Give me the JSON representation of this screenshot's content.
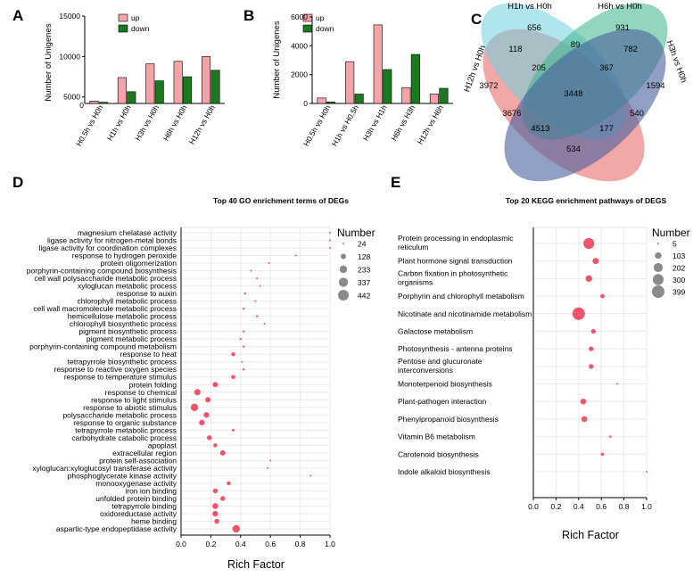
{
  "chart_data": [
    {
      "panel": "A",
      "type": "bar",
      "categories": [
        "H0.5h vs H0h",
        "H1h vs H0h",
        "H3h vs H0h",
        "H6h vs H0h",
        "H12h vs H0h"
      ],
      "series": [
        {
          "name": "up",
          "color": "#f4a3a8",
          "values": [
            4500,
            7400,
            9100,
            9400,
            10000
          ]
        },
        {
          "name": "down",
          "color": "#1a7a1f",
          "values": [
            4350,
            5650,
            7000,
            7500,
            8300
          ]
        }
      ],
      "ylabel": "Number of Unigenes",
      "ylim": [
        4200,
        15000
      ],
      "yticks": [
        5000,
        10000,
        15000
      ],
      "ytick_labels": [
        "5000",
        "10000",
        "15000"
      ],
      "origin_label": "0"
    },
    {
      "panel": "B",
      "type": "bar",
      "categories": [
        "H0.5h vs H0h",
        "H1h vs H0.5h",
        "H3h vs H1h",
        "H6h vs H3h",
        "H12h vs H6h"
      ],
      "series": [
        {
          "name": "up",
          "color": "#f4a3a8",
          "values": [
            380,
            2900,
            5450,
            1100,
            650
          ]
        },
        {
          "name": "down",
          "color": "#1a7a1f",
          "values": [
            100,
            650,
            2350,
            3400,
            1050
          ]
        }
      ],
      "ylabel": "Number of Unigenes",
      "ylim": [
        0,
        6000
      ],
      "yticks": [
        0,
        2000,
        4000,
        6000
      ],
      "ytick_labels": [
        "0",
        "2000",
        "4000",
        "6000"
      ]
    },
    {
      "panel": "C",
      "type": "venn",
      "sets": [
        "H12h vs H0h",
        "H1h vs H0h",
        "H6h vs H0h",
        "H3h vs H0h"
      ],
      "regions": [
        "656",
        "931",
        "89",
        "118",
        "782",
        "205",
        "367",
        "3972",
        "1594",
        "3448",
        "3676",
        "540",
        "4513",
        "177",
        "534"
      ]
    },
    {
      "panel": "D",
      "type": "scatter",
      "title": "Top 40 GO enrichment terms of DEGs",
      "xlabel": "Rich Factor",
      "xlim": [
        0,
        1
      ],
      "xticks": [
        0,
        0.2,
        0.4,
        0.6,
        0.8,
        1.0
      ],
      "xtick_labels": [
        "0.0",
        "0.2",
        "0.4",
        "0.6",
        "0.8",
        "1.0"
      ],
      "legend_title": "Number",
      "legend_sizes": [
        24,
        128,
        233,
        337,
        442
      ],
      "terms": [
        "magnesium chelatase activity",
        "ligase activity for nitrogen-metal bonds",
        "ligase activity for coordination complexes",
        "response to hydrogen peroxide",
        "protein oligomerization",
        "porphyrin-containing compound biosynthesis",
        "cell wall polysaccharide metabolic process",
        "xyloglucan metabolic process",
        "response to auxin",
        "chlorophyll metabolic process",
        "cell wall macromolecule metabolic process",
        "hemicellulose metabolic process",
        "chlorophyll biosynthetic process",
        "pigment biosynthetic process",
        "pigment metabolic process",
        "porphyrin-containing compound metabolism",
        "response to heat",
        "tetrapyrrole biosynthetic process",
        "response to reactive oxygen species",
        "response to temperature stimulus",
        "protein folding",
        "response to chemical",
        "response to light stimulus",
        "response to abiotic stimulus",
        "polysaccharide metabolic process",
        "response to organic substance",
        "tetrapyrrole metabolic process",
        "carbohydrate catabolic process",
        "apoplast",
        "extracellular region",
        "protein self-association",
        "xyloglucan:xyloglucosyl transferase activity",
        "phosphoglycerate kinase activity",
        "monooxygenase activity",
        "iron ion binding",
        "unfolded protein binding",
        "tetrapyrrole binding",
        "oxidoreductase activity",
        "heme binding",
        "aspartic-type endopeptidase activity"
      ],
      "x": [
        1.0,
        1.0,
        1.0,
        0.77,
        0.59,
        0.47,
        0.51,
        0.53,
        0.43,
        0.5,
        0.42,
        0.51,
        0.56,
        0.42,
        0.4,
        0.42,
        0.35,
        0.41,
        0.42,
        0.35,
        0.23,
        0.11,
        0.18,
        0.09,
        0.17,
        0.14,
        0.35,
        0.19,
        0.23,
        0.28,
        0.6,
        0.58,
        0.87,
        0.32,
        0.23,
        0.28,
        0.23,
        0.23,
        0.24,
        0.37
      ],
      "sizes": [
        24,
        24,
        24,
        24,
        24,
        24,
        24,
        24,
        30,
        24,
        30,
        30,
        24,
        30,
        30,
        30,
        80,
        24,
        30,
        80,
        128,
        170,
        128,
        233,
        140,
        140,
        40,
        110,
        80,
        128,
        24,
        24,
        24,
        80,
        110,
        110,
        150,
        140,
        110,
        233
      ]
    },
    {
      "panel": "E",
      "type": "scatter",
      "title": "Top 20 KEGG enrichment pathways of DEGS",
      "xlabel": "Rich Factor",
      "xlim": [
        0,
        1
      ],
      "xticks": [
        0,
        0.2,
        0.4,
        0.6,
        0.8,
        1.0
      ],
      "xtick_labels": [
        "0.0",
        "0.2",
        "0.4",
        "0.6",
        "0.8",
        "1.0"
      ],
      "legend_title": "Number",
      "legend_sizes": [
        5,
        103,
        202,
        300,
        399
      ],
      "pathways": [
        "Protein processing in endoplasmic reticulum",
        "Plant hormone signal transduction",
        "Carbon fixation in photosynthetic organisms",
        "Porphyrin and chlorophyll metabolism",
        "Nicotinate and nicotinamide metabolism",
        "Galactose metabolism",
        "Photosynthesis - antenna proteins",
        "Pentose and glucuronate interconversions",
        "Monoterpenoid biosynthesis",
        "Plant-pathogen interaction",
        "Phenylpropanoid biosynthesis",
        "Vitamin B6 metabolism",
        "Carotenoid biosynthesis",
        "Indole alkaloid biosynthesis"
      ],
      "pathway_lines": [
        [
          "Protein processing in endoplasmic",
          "reticulum"
        ],
        [
          "Plant hormone signal transduction"
        ],
        [
          "Carbon fixation in photosynthetic",
          "organisms"
        ],
        [
          "Porphyrin and chlorophyll metabolism"
        ],
        [
          "Nicotinate and nicotinamide metabolism"
        ],
        [
          "Galactose metabolism"
        ],
        [
          "Photosynthesis - antenna proteins"
        ],
        [
          "Pentose and glucuronate",
          "interconversions"
        ],
        [
          "Monoterpenoid biosynthesis"
        ],
        [
          "Plant-pathogen interaction"
        ],
        [
          "Phenylpropanoid biosynthesis"
        ],
        [
          "Vitamin B6 metabolism"
        ],
        [
          "Carotenoid biosynthesis"
        ],
        [
          "Indole alkaloid biosynthesis"
        ]
      ],
      "x": [
        0.49,
        0.55,
        0.49,
        0.61,
        0.4,
        0.53,
        0.51,
        0.51,
        0.74,
        0.44,
        0.45,
        0.68,
        0.61,
        1.0
      ],
      "sizes": [
        300,
        90,
        103,
        40,
        399,
        50,
        50,
        50,
        5,
        80,
        80,
        10,
        20,
        5
      ]
    }
  ],
  "panel_letters": [
    "A",
    "B",
    "C",
    "D",
    "E"
  ],
  "legend_up": "up",
  "legend_down": "down",
  "colors": {
    "up": "#f4a3a8",
    "down": "#1a7a1f",
    "dot": "#f0536a",
    "legend_dot": "#8a8a8a",
    "venn_red": "#e8615f",
    "venn_cyan": "#6fcfe0",
    "venn_green": "#3bb58a",
    "venn_blue": "#4a5f9c"
  }
}
